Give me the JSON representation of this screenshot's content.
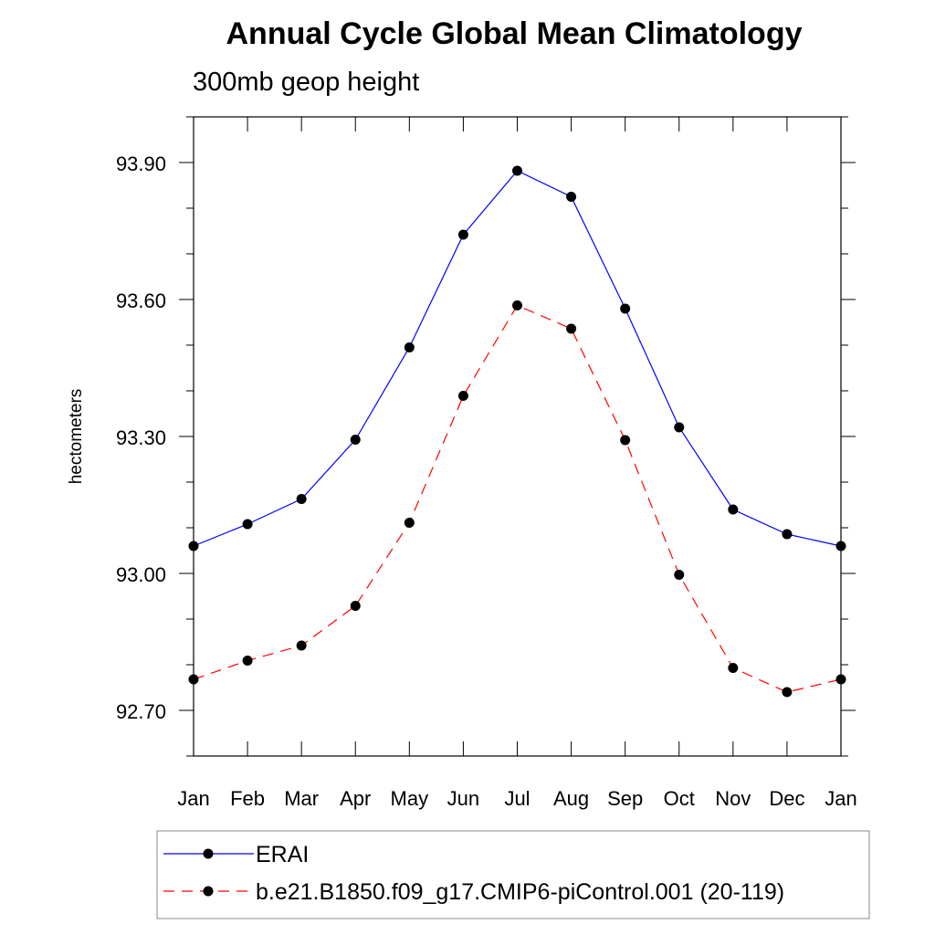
{
  "chart_data": {
    "type": "line",
    "title": "Annual Cycle Global Mean Climatology",
    "subtitle": "300mb geop height",
    "xlabel": "",
    "ylabel": "hectometers",
    "categories": [
      "Jan",
      "Feb",
      "Mar",
      "Apr",
      "May",
      "Jun",
      "Jul",
      "Aug",
      "Sep",
      "Oct",
      "Nov",
      "Dec",
      "Jan"
    ],
    "ylim": [
      92.6,
      94.0
    ],
    "yticks": [
      "93.90",
      "93.60",
      "93.30",
      "93.00",
      "92.70"
    ],
    "ytick_values": [
      93.9,
      93.6,
      93.3,
      93.0,
      92.7
    ],
    "grid": false,
    "legend_position": "bottom",
    "series": [
      {
        "name": "ERAI",
        "color": "#0000ff",
        "dash": "solid",
        "marker": "filled-circle",
        "values": [
          93.06,
          93.108,
          93.163,
          93.293,
          93.495,
          93.742,
          93.882,
          93.825,
          93.58,
          93.32,
          93.14,
          93.086,
          93.06
        ]
      },
      {
        "name": "b.e21.B1850.f09_g17.CMIP6-piControl.001 (20-119)",
        "color": "#ff0000",
        "dash": "dashed",
        "marker": "filled-circle",
        "values": [
          92.768,
          92.809,
          92.842,
          92.929,
          93.111,
          93.389,
          93.587,
          93.536,
          93.292,
          92.997,
          92.793,
          92.74,
          92.768
        ]
      }
    ]
  }
}
